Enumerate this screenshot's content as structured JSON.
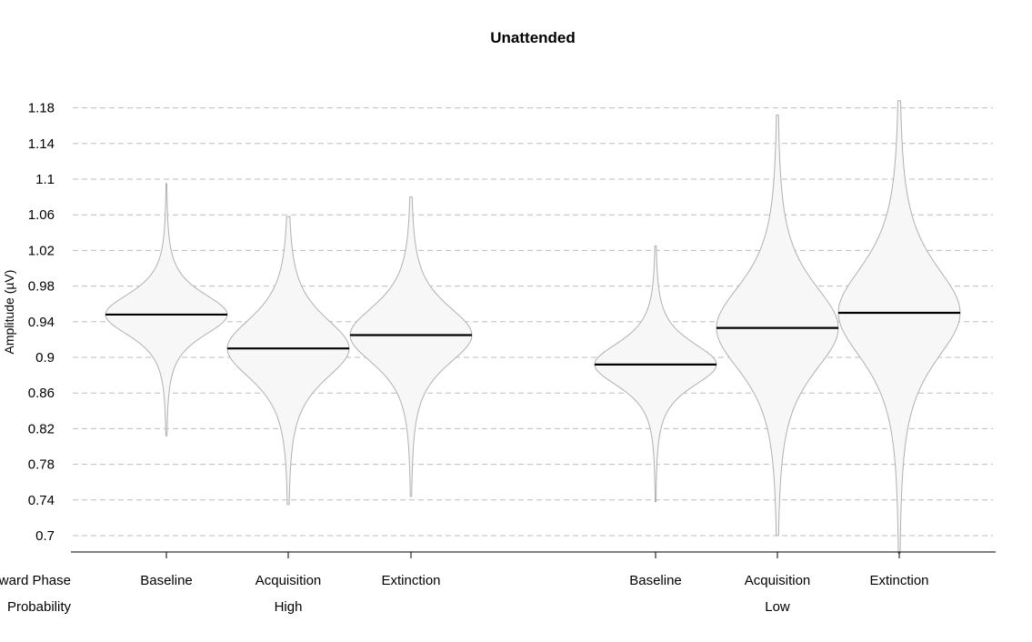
{
  "chart_data": {
    "type": "violin",
    "title": "Unattended",
    "ylabel": "Amplitude (µV)",
    "ylim": [
      0.68,
      1.19
    ],
    "yticks": [
      "0.7",
      "0.74",
      "0.78",
      "0.82",
      "0.86",
      "0.9",
      "0.94",
      "0.98",
      "1.02",
      "1.06",
      "1.1",
      "1.14",
      "1.18"
    ],
    "grid": true,
    "row_labels": [
      "Reward Phase",
      "Probability"
    ],
    "groups": [
      {
        "name": "High",
        "categories": [
          "Baseline",
          "Acquisition",
          "Extinction"
        ]
      },
      {
        "name": "Low",
        "categories": [
          "Baseline",
          "Acquisition",
          "Extinction"
        ]
      }
    ],
    "series": [
      {
        "phase": "Baseline",
        "probability": "High",
        "median": 0.948,
        "min": 0.812,
        "max": 1.095,
        "spread": 0.026
      },
      {
        "phase": "Acquisition",
        "probability": "High",
        "median": 0.91,
        "min": 0.735,
        "max": 1.058,
        "spread": 0.038
      },
      {
        "phase": "Extinction",
        "probability": "High",
        "median": 0.925,
        "min": 0.744,
        "max": 1.08,
        "spread": 0.036
      },
      {
        "phase": "Baseline",
        "probability": "Low",
        "median": 0.892,
        "min": 0.738,
        "max": 1.025,
        "spread": 0.027
      },
      {
        "phase": "Acquisition",
        "probability": "Low",
        "median": 0.933,
        "min": 0.7,
        "max": 1.172,
        "spread": 0.054
      },
      {
        "phase": "Extinction",
        "probability": "Low",
        "median": 0.95,
        "min": 0.68,
        "max": 1.188,
        "spread": 0.058
      }
    ]
  }
}
